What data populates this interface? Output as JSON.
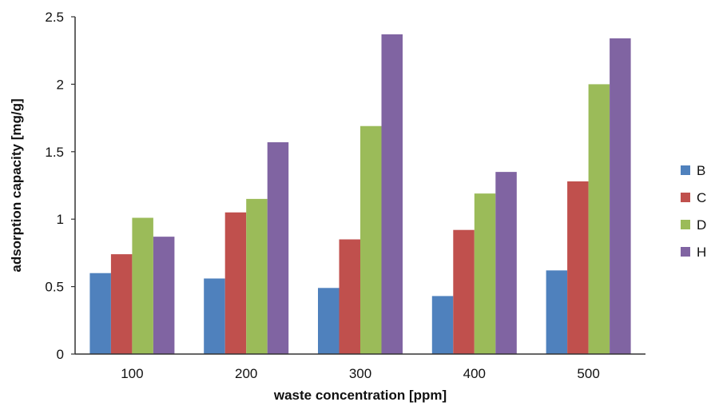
{
  "chart_data": {
    "type": "bar",
    "title": "",
    "xlabel": "waste concentration [ppm]",
    "ylabel": "adsorption capacity [mg/g]",
    "categories": [
      "100",
      "200",
      "300",
      "400",
      "500"
    ],
    "ylim": [
      0,
      2.5
    ],
    "yticks": [
      "0",
      "0.5",
      "1",
      "1.5",
      "2",
      "2.5"
    ],
    "grid": false,
    "legend_position": "right",
    "series": [
      {
        "name": "B",
        "color": "#4f81bd",
        "values": [
          0.6,
          0.56,
          0.49,
          0.43,
          0.62
        ]
      },
      {
        "name": "C",
        "color": "#c0504d",
        "values": [
          0.74,
          1.05,
          0.85,
          0.92,
          1.28
        ]
      },
      {
        "name": "D",
        "color": "#9bbb59",
        "values": [
          1.01,
          1.15,
          1.69,
          1.19,
          2.0
        ]
      },
      {
        "name": "H",
        "color": "#8064a2",
        "values": [
          0.87,
          1.57,
          2.37,
          1.35,
          2.34
        ]
      }
    ]
  }
}
